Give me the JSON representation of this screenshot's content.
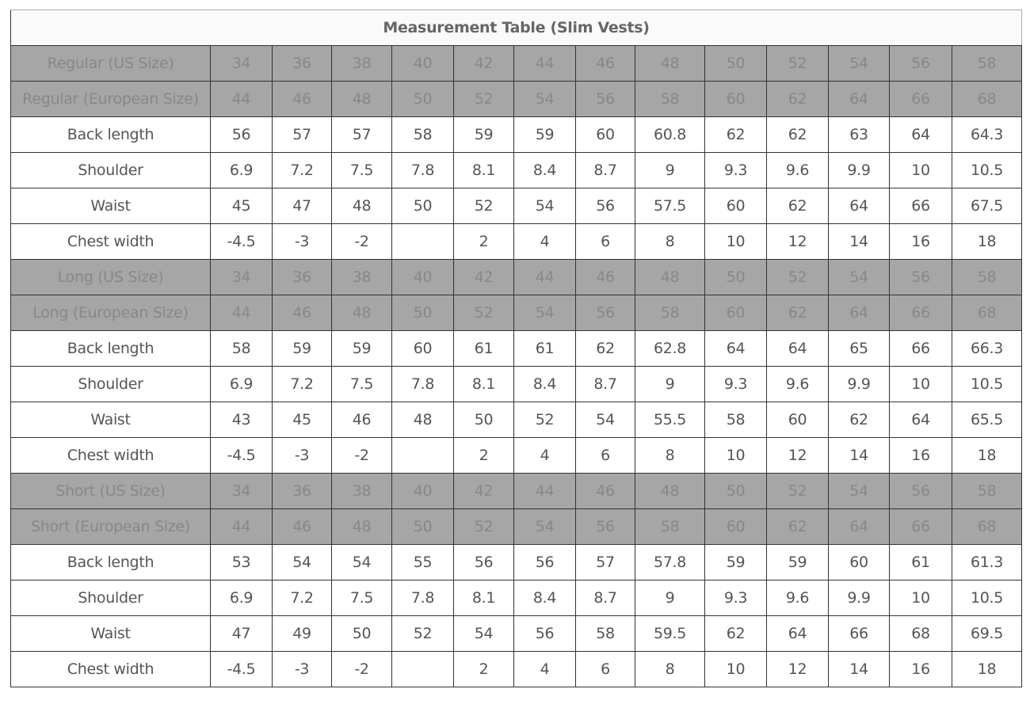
{
  "title": "Measurement Table (Slim Vests)",
  "colors": {
    "header_row_bg": "#a6a6a6",
    "header_row_text": "#888888",
    "body_text": "#555555"
  },
  "rows": [
    {
      "type": "header",
      "label": "Regular (US Size)",
      "values": [
        "34",
        "36",
        "38",
        "40",
        "42",
        "44",
        "46",
        "48",
        "50",
        "52",
        "54",
        "56",
        "58"
      ]
    },
    {
      "type": "header",
      "label": "Regular (European Size)",
      "values": [
        "44",
        "46",
        "48",
        "50",
        "52",
        "54",
        "56",
        "58",
        "60",
        "62",
        "64",
        "66",
        "68"
      ]
    },
    {
      "type": "measure",
      "label": "Back length",
      "values": [
        "56",
        "57",
        "57",
        "58",
        "59",
        "59",
        "60",
        "60.8",
        "62",
        "62",
        "63",
        "64",
        "64.3"
      ]
    },
    {
      "type": "measure",
      "label": "Shoulder",
      "values": [
        "6.9",
        "7.2",
        "7.5",
        "7.8",
        "8.1",
        "8.4",
        "8.7",
        "9",
        "9.3",
        "9.6",
        "9.9",
        "10",
        "10.5"
      ]
    },
    {
      "type": "measure",
      "label": "Waist",
      "values": [
        "45",
        "47",
        "48",
        "50",
        "52",
        "54",
        "56",
        "57.5",
        "60",
        "62",
        "64",
        "66",
        "67.5"
      ]
    },
    {
      "type": "measure",
      "label": "Chest width",
      "values": [
        "-4.5",
        "-3",
        "-2",
        "",
        "2",
        "4",
        "6",
        "8",
        "10",
        "12",
        "14",
        "16",
        "18"
      ]
    },
    {
      "type": "header",
      "label": "Long (US Size)",
      "values": [
        "34",
        "36",
        "38",
        "40",
        "42",
        "44",
        "46",
        "48",
        "50",
        "52",
        "54",
        "56",
        "58"
      ]
    },
    {
      "type": "header",
      "label": "Long (European Size)",
      "values": [
        "44",
        "46",
        "48",
        "50",
        "52",
        "54",
        "56",
        "58",
        "60",
        "62",
        "64",
        "66",
        "68"
      ]
    },
    {
      "type": "measure",
      "label": "Back length",
      "values": [
        "58",
        "59",
        "59",
        "60",
        "61",
        "61",
        "62",
        "62.8",
        "64",
        "64",
        "65",
        "66",
        "66.3"
      ]
    },
    {
      "type": "measure",
      "label": "Shoulder",
      "values": [
        "6.9",
        "7.2",
        "7.5",
        "7.8",
        "8.1",
        "8.4",
        "8.7",
        "9",
        "9.3",
        "9.6",
        "9.9",
        "10",
        "10.5"
      ]
    },
    {
      "type": "measure",
      "label": "Waist",
      "values": [
        "43",
        "45",
        "46",
        "48",
        "50",
        "52",
        "54",
        "55.5",
        "58",
        "60",
        "62",
        "64",
        "65.5"
      ]
    },
    {
      "type": "measure",
      "label": "Chest width",
      "values": [
        "-4.5",
        "-3",
        "-2",
        "",
        "2",
        "4",
        "6",
        "8",
        "10",
        "12",
        "14",
        "16",
        "18"
      ]
    },
    {
      "type": "header",
      "label": "Short (US Size)",
      "values": [
        "34",
        "36",
        "38",
        "40",
        "42",
        "44",
        "46",
        "48",
        "50",
        "52",
        "54",
        "56",
        "58"
      ]
    },
    {
      "type": "header",
      "label": "Short (European Size)",
      "values": [
        "44",
        "46",
        "48",
        "50",
        "52",
        "54",
        "56",
        "58",
        "60",
        "62",
        "64",
        "66",
        "68"
      ]
    },
    {
      "type": "measure",
      "label": "Back length",
      "values": [
        "53",
        "54",
        "54",
        "55",
        "56",
        "56",
        "57",
        "57.8",
        "59",
        "59",
        "60",
        "61",
        "61.3"
      ]
    },
    {
      "type": "measure",
      "label": "Shoulder",
      "values": [
        "6.9",
        "7.2",
        "7.5",
        "7.8",
        "8.1",
        "8.4",
        "8.7",
        "9",
        "9.3",
        "9.6",
        "9.9",
        "10",
        "10.5"
      ]
    },
    {
      "type": "measure",
      "label": "Waist",
      "values": [
        "47",
        "49",
        "50",
        "52",
        "54",
        "56",
        "58",
        "59.5",
        "62",
        "64",
        "66",
        "68",
        "69.5"
      ]
    },
    {
      "type": "measure",
      "label": "Chest width",
      "values": [
        "-4.5",
        "-3",
        "-2",
        "",
        "2",
        "4",
        "6",
        "8",
        "10",
        "12",
        "14",
        "16",
        "18"
      ]
    }
  ]
}
